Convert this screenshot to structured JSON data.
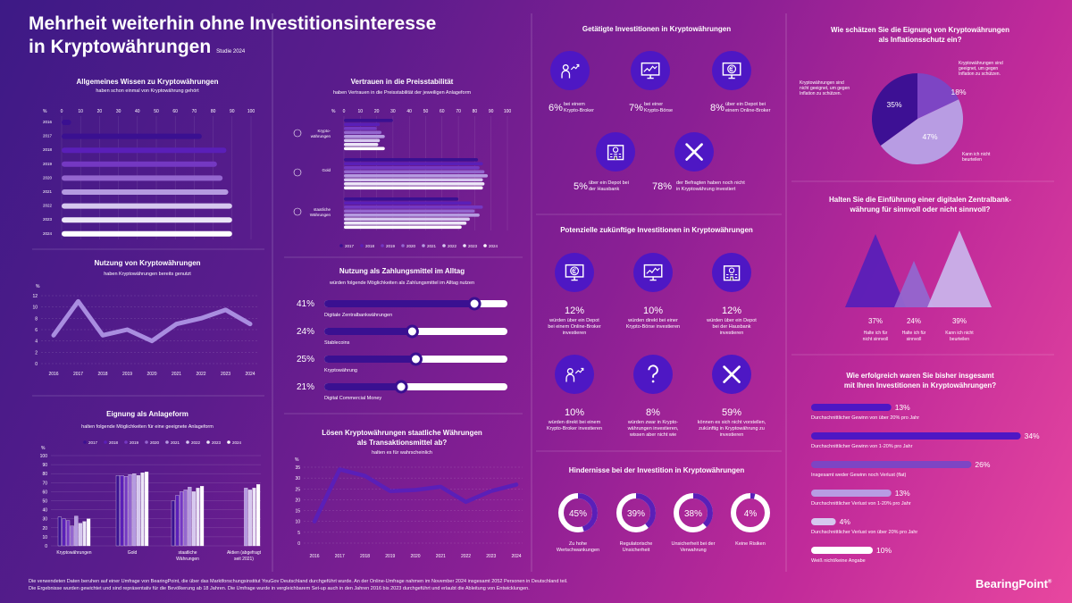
{
  "page": {
    "title": "Mehrheit weiterhin ohne Investitionsinteresse in Kryptowährungen",
    "title_l1": "Mehrheit weiterhin ohne Investitionsinteresse",
    "title_l2": "in Kryptowährungen",
    "subtitle": "Studie 2024",
    "footer_l1": "Die verwendeten Daten beruhen auf einer Umfrage von BearingPoint, die über das Marktforschungsinstitut YouGov Deutschland durchgeführt wurde. An der Online-Umfrage nahmen im November 2024 insgesamt 2052 Personen in Deutschland teil.",
    "footer_l2": "Die Ergebnisse wurden gewichtet und sind repräsentativ für die Bevölkerung ab 18 Jahren. Die Umfrage wurde in vergleichbarem Set-up auch in den Jahren 2016 bis 2023 durchgeführt und erlaubt die Ableitung von Entwicklungen.",
    "logo": "BearingPoint",
    "logo_mark": "®"
  },
  "colors": {
    "y2017": "#3a1091",
    "y2018": "#5a1fb8",
    "y2019": "#7438c2",
    "y2020": "#9466cf",
    "y2021": "#b59ae0",
    "y2022": "#d6c8ef",
    "y2023": "#ece6f7",
    "y2024": "#ffffff",
    "dark": "#4e17c4"
  },
  "chart_data": [
    {
      "id": "wissen",
      "type": "bar",
      "title": "Allgemeines Wissen zu Kryptowährungen",
      "subtitle": "haben schon einmal von Kryptowährung gehört",
      "xaxis_unit": "%",
      "xlim": [
        0,
        100
      ],
      "xticks": [
        0,
        10,
        20,
        30,
        40,
        50,
        60,
        70,
        80,
        90,
        100
      ],
      "categories": [
        "2016",
        "2017",
        "2018",
        "2019",
        "2020",
        "2021",
        "2022",
        "2023",
        "2024"
      ],
      "values": [
        5,
        74,
        87,
        82,
        85,
        88,
        90,
        90,
        90
      ]
    },
    {
      "id": "nutzung",
      "type": "line",
      "title": "Nutzung von Kryptowährungen",
      "subtitle": "haben Kryptowährungen bereits genutzt",
      "ylim": [
        0,
        12
      ],
      "yticks": [
        0,
        2,
        4,
        6,
        8,
        10,
        12
      ],
      "yaxis_unit": "%",
      "x": [
        "2016",
        "2017",
        "2018",
        "2019",
        "2020",
        "2021",
        "2022",
        "2023",
        "2024"
      ],
      "values": [
        5,
        11,
        5,
        6,
        4,
        7,
        8,
        9.5,
        7
      ]
    },
    {
      "id": "anlage",
      "type": "bar",
      "title": "Eignung als Anlageform",
      "subtitle": "halten folgende Möglichkeiten für eine geeignete Anlageform",
      "ylim": [
        0,
        100
      ],
      "yticks": [
        0,
        10,
        20,
        30,
        40,
        50,
        60,
        70,
        80,
        90,
        100
      ],
      "yaxis_unit": "%",
      "categories": [
        "Kryptowährungen",
        "Gold",
        "staatliche Währungen",
        "Aktien (abgefragt seit 2021)"
      ],
      "cat_l1": [
        "Kryptowährungen",
        "Gold",
        "staatliche",
        "Aktien (abgefragt"
      ],
      "cat_l2": [
        "",
        "",
        "Währungen",
        "seit 2021)"
      ],
      "legend": [
        "2017",
        "2018",
        "2019",
        "2020",
        "2021",
        "2022",
        "2023",
        "2024"
      ],
      "series": [
        {
          "name": "2017",
          "values": [
            32,
            78,
            50,
            null
          ]
        },
        {
          "name": "2018",
          "values": [
            30,
            78,
            56,
            null
          ]
        },
        {
          "name": "2019",
          "values": [
            28,
            77,
            60,
            null
          ]
        },
        {
          "name": "2020",
          "values": [
            22,
            79,
            62,
            null
          ]
        },
        {
          "name": "2021",
          "values": [
            33,
            80,
            65,
            64
          ]
        },
        {
          "name": "2022",
          "values": [
            25,
            78,
            60,
            62
          ]
        },
        {
          "name": "2023",
          "values": [
            27,
            81,
            64,
            64
          ]
        },
        {
          "name": "2024",
          "values": [
            30,
            82,
            66,
            68
          ]
        }
      ]
    },
    {
      "id": "vertrauen",
      "type": "bar",
      "title": "Vertrauen in die Preisstabilität",
      "subtitle": "haben Vertrauen in die Preisstabilität der jeweiligen Anlageform",
      "xaxis_unit": "%",
      "xlim": [
        0,
        100
      ],
      "xticks": [
        0,
        10,
        20,
        30,
        40,
        50,
        60,
        70,
        80,
        90,
        100
      ],
      "categories": [
        "Krypto-währungen",
        "Gold",
        "staatliche Währungen"
      ],
      "cat_l1": [
        "Krypto-",
        "Gold",
        "staatliche"
      ],
      "cat_l2": [
        "währungen",
        "",
        "Währungen"
      ],
      "legend": [
        "2017",
        "2018",
        "2019",
        "2020",
        "2021",
        "2022",
        "2023",
        "2024"
      ],
      "series": [
        {
          "name": "2017",
          "values": [
            30,
            82,
            70
          ]
        },
        {
          "name": "2018",
          "values": [
            22,
            85,
            78
          ]
        },
        {
          "name": "2019",
          "values": [
            20,
            83,
            85
          ]
        },
        {
          "name": "2020",
          "values": [
            23,
            86,
            80
          ]
        },
        {
          "name": "2021",
          "values": [
            25,
            88,
            83
          ]
        },
        {
          "name": "2022",
          "values": [
            22,
            85,
            77
          ]
        },
        {
          "name": "2023",
          "values": [
            21,
            86,
            75
          ]
        },
        {
          "name": "2024",
          "values": [
            25,
            85,
            72
          ]
        }
      ]
    },
    {
      "id": "zahlung",
      "type": "bar",
      "title": "Nutzung als Zahlungsmittel im Alltag",
      "subtitle": "würden folgende Möglichkeiten als Zahlungsmittel im Alltag nutzen",
      "categories": [
        "Digitale Zentralbankwährungen",
        "Stablecoins",
        "Kryptowährung",
        "Digital Commercial Money"
      ],
      "values": [
        41,
        24,
        25,
        21
      ],
      "labels": [
        "41%",
        "24%",
        "25%",
        "21%"
      ]
    },
    {
      "id": "transaktion",
      "type": "line",
      "title": "Lösen Kryptowährungen staatliche Währungen als Transaktionsmittel ab?",
      "title_l1": "Lösen Kryptowährungen staatliche Währungen",
      "title_l2": "als Transaktionsmittel ab?",
      "subtitle": "halten es für wahrscheinlich",
      "ylim": [
        0,
        35
      ],
      "yticks": [
        0,
        5,
        10,
        15,
        20,
        25,
        30,
        35
      ],
      "yaxis_unit": "%",
      "x": [
        "2016",
        "2017",
        "2018",
        "2019",
        "2020",
        "2021",
        "2022",
        "2023",
        "2024"
      ],
      "values": [
        10,
        34,
        31,
        24,
        24.5,
        26,
        19,
        24,
        27
      ]
    },
    {
      "id": "inflation",
      "type": "pie",
      "title": "Wie schätzen Sie die Eignung von Kryptowährungen als Inflationsschutz ein?",
      "title_l1": "Wie schätzen Sie die Eignung von Kryptowährungen",
      "title_l2": "als Inflationsschutz ein?",
      "slices": [
        {
          "label": "Kryptowährungen sind geeignet, um gegen Inflation zu schützen.",
          "value": 18,
          "text": "18%"
        },
        {
          "label": "Kann ich nicht beurteilen",
          "value": 47,
          "text": "47%"
        },
        {
          "label": "Kryptowährungen sind nicht geeignet, um gegen Inflation zu schützen.",
          "value": 35,
          "text": "35%"
        }
      ]
    },
    {
      "id": "zentralbank",
      "type": "bar",
      "title": "Halten Sie die Einführung einer digitalen Zentralbankwährung für sinnvoll oder nicht sinnvoll?",
      "title_l1": "Halten Sie die Einführung einer digitalen Zentralbank-",
      "title_l2": "währung für sinnvoll oder nicht sinnvoll?",
      "categories": [
        "Halte ich für nicht sinnvoll",
        "Halte ich für sinnvoll",
        "Kann ich nicht beurteilen"
      ],
      "cat_l1": [
        "Halte ich für",
        "Halte ich für",
        "Kann ich nicht"
      ],
      "cat_l2": [
        "nicht sinnvoll",
        "sinnvoll",
        "beurteilen"
      ],
      "values": [
        37,
        24,
        39
      ],
      "labels": [
        "37%",
        "24%",
        "39%"
      ]
    },
    {
      "id": "erfolg",
      "type": "bar",
      "title": "Wie erfolgreich waren Sie bisher insgesamt mit Ihren Investitionen in Kryptowährungen?",
      "title_l1": "Wie erfolgreich waren Sie bisher insgesamt",
      "title_l2": "mit Ihren Investitionen in Kryptowährungen?",
      "categories": [
        "Durchschnittlicher Gewinn von über 20% pro Jahr",
        "Durchschnittlicher Gewinn von 1-20% pro Jahr",
        "Insgesamt weder Gewinn noch Verlust (flat)",
        "Durchschnittlicher Verlust von 1-20% pro Jahr",
        "Durchschnittlicher Verlust von über 20% pro Jahr",
        "Weiß nicht/keine Angabe"
      ],
      "values": [
        13,
        34,
        26,
        13,
        4,
        10
      ],
      "labels": [
        "13%",
        "34%",
        "26%",
        "13%",
        "4%",
        "10%"
      ]
    },
    {
      "id": "hindernisse",
      "type": "pie",
      "title": "Hindernisse bei der Investition in Kryptowährungen",
      "categories": [
        "Zu hohe Wertschwankungen",
        "Regulatorische Unsicherheit",
        "Unsicherheit bei der Verwahrung",
        "Keine Risiken"
      ],
      "cat_l1": [
        "Zu hohe",
        "Regulatorische",
        "Unsicherheit bei der",
        "Keine Risiken"
      ],
      "cat_l2": [
        "Wertschwankungen",
        "Unsicherheit",
        "Verwahrung",
        ""
      ],
      "values": [
        45,
        39,
        38,
        4
      ],
      "labels": [
        "45%",
        "39%",
        "38%",
        "4%"
      ]
    }
  ],
  "getaetigt": {
    "title": "Getätigte Investitionen in Kryptowährungen",
    "items": [
      {
        "pct": "6%",
        "l1": "bei einem",
        "l2": "Krypto-Broker",
        "icon": "person-chart-icon"
      },
      {
        "pct": "7%",
        "l1": "bei einer",
        "l2": "Krypto-Börse",
        "icon": "monitor-chart-icon"
      },
      {
        "pct": "8%",
        "l1": "über ein Depot bei",
        "l2": "einem Online-Broker",
        "icon": "euro-monitor-icon"
      },
      {
        "pct": "5%",
        "l1": "über ein Depot bei",
        "l2": "der Hausbank",
        "icon": "bank-building-icon"
      },
      {
        "pct": "78%",
        "l1": "der Befragten haben noch nicht",
        "l2": "in Kryptowährung investiert",
        "icon": "cross-icon"
      }
    ]
  },
  "potenziell": {
    "title": "Potenzielle zukünftige Investitionen in Kryptowährungen",
    "items": [
      {
        "pct": "12%",
        "l1": "würden über ein Depot",
        "l2": "bei einem Online-Broker",
        "l3": "investieren",
        "icon": "euro-monitor-icon"
      },
      {
        "pct": "10%",
        "l1": "würden direkt bei einer",
        "l2": "Krypto-Börse investieren",
        "l3": "",
        "icon": "monitor-chart-icon"
      },
      {
        "pct": "12%",
        "l1": "würden über ein Depot",
        "l2": "bei der Hausbank",
        "l3": "investieren",
        "icon": "bank-building-icon"
      },
      {
        "pct": "10%",
        "l1": "würden direkt bei einem",
        "l2": "Krypto-Broker investieren",
        "l3": "",
        "icon": "person-chart-icon"
      },
      {
        "pct": "8%",
        "l1": "würden zwar in Krypto-",
        "l2": "währungen investieren,",
        "l3": "wissen aber nicht wie",
        "icon": "question-icon"
      },
      {
        "pct": "59%",
        "l1": "können es sich nicht vorstellen,",
        "l2": "zukünftig in Kryptowährung zu",
        "l3": "investieren",
        "icon": "cross-icon"
      }
    ]
  }
}
